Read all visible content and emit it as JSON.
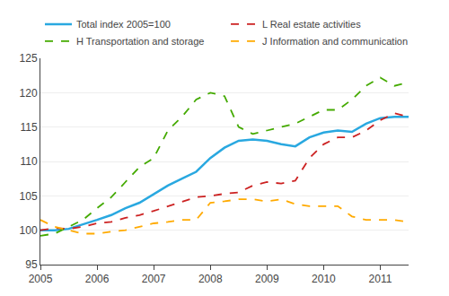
{
  "chart_data": {
    "type": "line",
    "categories": [
      "2005",
      null,
      null,
      null,
      "2006",
      null,
      null,
      null,
      "2007",
      null,
      null,
      null,
      "2008",
      null,
      null,
      null,
      "2009",
      null,
      null,
      null,
      "2010",
      null,
      null,
      null,
      "2011",
      null,
      null
    ],
    "series": [
      {
        "name": "Total index 2005=100",
        "color": "#29a8e0",
        "line_style": "solid",
        "values": [
          100.0,
          100.0,
          100.2,
          100.8,
          101.5,
          102.2,
          103.2,
          104.0,
          105.2,
          106.5,
          107.5,
          108.5,
          110.5,
          112.0,
          113.0,
          113.2,
          113.0,
          112.5,
          112.2,
          113.5,
          114.2,
          114.5,
          114.3,
          115.5,
          116.3,
          116.5,
          116.5
        ]
      },
      {
        "name": "L Real estate activities",
        "color": "#cc2222",
        "line_style": "dashed",
        "values": [
          100.0,
          100.3,
          100.2,
          100.5,
          101.0,
          101.2,
          101.8,
          102.2,
          102.8,
          103.5,
          104.2,
          104.8,
          105.0,
          105.3,
          105.5,
          106.5,
          107.0,
          106.8,
          107.2,
          110.5,
          112.5,
          113.5,
          113.5,
          114.5,
          116.0,
          117.0,
          116.5
        ]
      },
      {
        "name": "H Transportation and storage",
        "color": "#44aa00",
        "line_style": "dashed",
        "values": [
          99.2,
          99.5,
          100.5,
          101.5,
          103.2,
          104.8,
          107.0,
          109.2,
          110.5,
          114.5,
          116.5,
          119.0,
          120.0,
          119.5,
          115.0,
          114.0,
          114.5,
          115.0,
          115.5,
          116.5,
          117.5,
          117.5,
          119.0,
          121.0,
          122.2,
          121.0,
          121.5
        ]
      },
      {
        "name": "J Information and communication",
        "color": "#ffaa00",
        "line_style": "dashed",
        "values": [
          101.5,
          100.5,
          100.0,
          99.5,
          99.5,
          99.8,
          100.0,
          100.5,
          101.0,
          101.2,
          101.5,
          101.5,
          104.0,
          104.2,
          104.5,
          104.5,
          104.2,
          104.5,
          103.8,
          103.5,
          103.5,
          103.5,
          102.0,
          101.5,
          101.5,
          101.5,
          101.2
        ]
      }
    ],
    "ylim": [
      95,
      125
    ],
    "yticks": [
      95,
      100,
      105,
      110,
      115,
      120,
      125
    ],
    "y2lim": [
      95,
      125
    ],
    "y2ticks": [
      95,
      100,
      105,
      110,
      115,
      120,
      125
    ],
    "grid": true,
    "legend": "upper left"
  }
}
